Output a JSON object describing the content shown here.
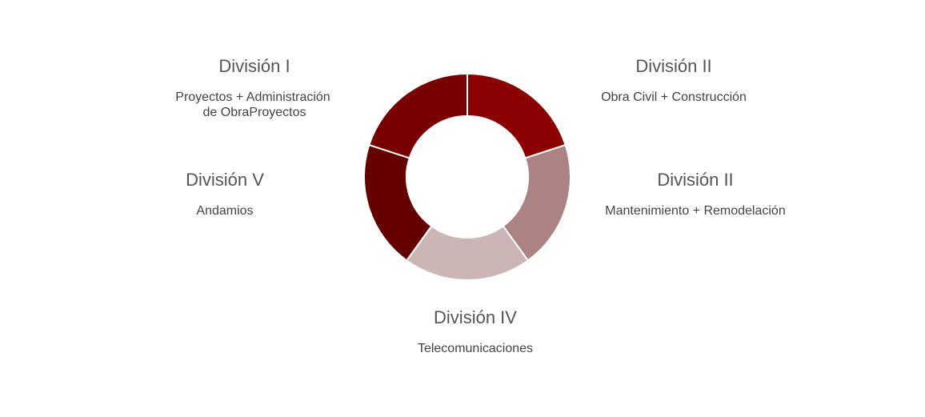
{
  "nodes": [
    {
      "title": "División I",
      "description": [
        "Proyectos + Administración",
        "de ObraProyectos"
      ]
    },
    {
      "title": "División II",
      "description": [
        "Obra Civil + Construcción"
      ]
    },
    {
      "title": "División II",
      "description": [
        "Mantenimiento + Remodelación"
      ]
    },
    {
      "title": "División IV",
      "description": [
        "Telecomunicaciones"
      ]
    },
    {
      "title": "División V",
      "description": [
        "Andamios"
      ]
    }
  ]
}
